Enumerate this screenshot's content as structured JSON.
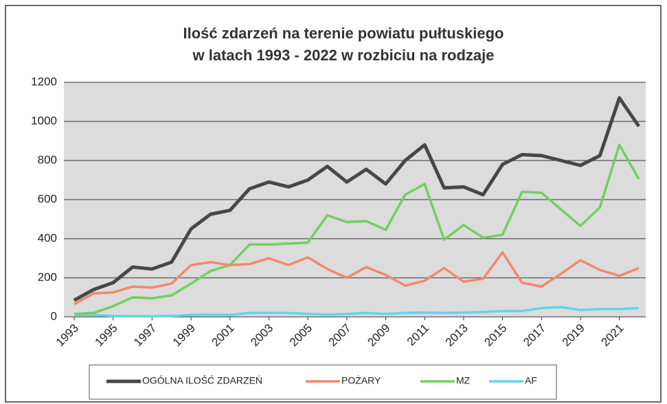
{
  "chart_data": {
    "type": "line",
    "title": [
      "Ilość zdarzeń na terenie powiatu pułtuskiego",
      "w latach 1993 - 2022 w rozbiciu na rodzaje"
    ],
    "x": [
      1993,
      1994,
      1995,
      1996,
      1997,
      1998,
      1999,
      2000,
      2001,
      2002,
      2003,
      2004,
      2005,
      2006,
      2007,
      2008,
      2009,
      2010,
      2011,
      2012,
      2013,
      2014,
      2015,
      2016,
      2017,
      2018,
      2019,
      2020,
      2021,
      2022
    ],
    "xlim": [
      1993,
      2022
    ],
    "xticks": [
      1993,
      1995,
      1997,
      1999,
      2001,
      2003,
      2005,
      2007,
      2009,
      2011,
      2013,
      2015,
      2017,
      2019,
      2021
    ],
    "ylim": [
      0,
      1200
    ],
    "yticks": [
      0,
      200,
      400,
      600,
      800,
      1000,
      1200
    ],
    "grid": true,
    "legend": "bottom",
    "series": [
      {
        "name": "OGÓLNA ILOŚĆ ZDARZEŃ",
        "color": "#474747",
        "values": [
          85,
          140,
          175,
          255,
          245,
          280,
          450,
          525,
          545,
          655,
          690,
          665,
          700,
          770,
          690,
          755,
          680,
          800,
          880,
          660,
          665,
          625,
          780,
          830,
          825,
          800,
          775,
          825,
          1120,
          975
        ]
      },
      {
        "name": "POŻARY",
        "color": "#f4876b",
        "values": [
          65,
          120,
          125,
          155,
          150,
          170,
          265,
          280,
          265,
          270,
          300,
          265,
          305,
          245,
          200,
          255,
          215,
          160,
          185,
          250,
          180,
          195,
          330,
          175,
          155,
          220,
          290,
          240,
          210,
          250
        ]
      },
      {
        "name": "MZ",
        "color": "#72cf5e",
        "values": [
          15,
          20,
          55,
          100,
          95,
          110,
          170,
          235,
          265,
          370,
          370,
          375,
          380,
          520,
          485,
          490,
          445,
          625,
          680,
          395,
          470,
          405,
          420,
          640,
          635,
          550,
          465,
          560,
          880,
          705
        ]
      },
      {
        "name": "AF",
        "color": "#5ed6e8",
        "values": [
          10,
          10,
          5,
          3,
          3,
          5,
          10,
          12,
          10,
          20,
          20,
          20,
          15,
          12,
          15,
          20,
          15,
          20,
          22,
          20,
          22,
          25,
          30,
          30,
          45,
          50,
          35,
          40,
          40,
          45
        ]
      }
    ]
  }
}
